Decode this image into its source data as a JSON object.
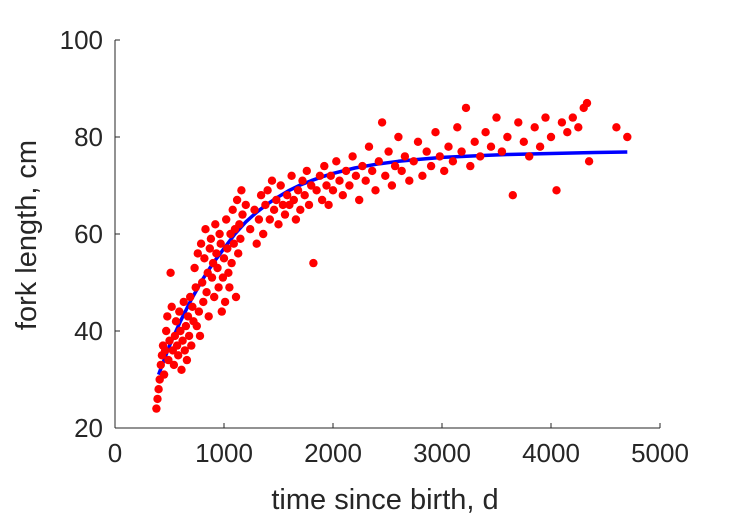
{
  "chart_data": {
    "type": "scatter",
    "title": "",
    "xlabel": "time since birth, d",
    "ylabel": "fork length, cm",
    "xlim": [
      0,
      5000
    ],
    "ylim": [
      20,
      100
    ],
    "xticks": [
      0,
      1000,
      2000,
      3000,
      4000,
      5000
    ],
    "yticks": [
      20,
      40,
      60,
      80,
      100
    ],
    "xtick_labels": [
      "0",
      "1000",
      "2000",
      "3000",
      "4000",
      "5000"
    ],
    "ytick_labels": [
      "20",
      "40",
      "60",
      "80",
      "100"
    ],
    "grid": false,
    "legend": "none",
    "series": [
      {
        "kind": "scatter",
        "color": "#ff0000",
        "points": [
          [
            380,
            24
          ],
          [
            390,
            26
          ],
          [
            400,
            28
          ],
          [
            410,
            30
          ],
          [
            420,
            33
          ],
          [
            430,
            35
          ],
          [
            440,
            37
          ],
          [
            450,
            31
          ],
          [
            460,
            36
          ],
          [
            470,
            40
          ],
          [
            480,
            43
          ],
          [
            490,
            34
          ],
          [
            500,
            38
          ],
          [
            510,
            52
          ],
          [
            520,
            45
          ],
          [
            530,
            36
          ],
          [
            540,
            33
          ],
          [
            550,
            39
          ],
          [
            560,
            42
          ],
          [
            570,
            37
          ],
          [
            580,
            35
          ],
          [
            590,
            44
          ],
          [
            600,
            40
          ],
          [
            610,
            32
          ],
          [
            620,
            38
          ],
          [
            630,
            46
          ],
          [
            640,
            36
          ],
          [
            650,
            41
          ],
          [
            660,
            34
          ],
          [
            670,
            43
          ],
          [
            680,
            39
          ],
          [
            690,
            47
          ],
          [
            700,
            37
          ],
          [
            710,
            45
          ],
          [
            720,
            42
          ],
          [
            730,
            53
          ],
          [
            740,
            49
          ],
          [
            750,
            41
          ],
          [
            760,
            56
          ],
          [
            770,
            44
          ],
          [
            780,
            39
          ],
          [
            790,
            58
          ],
          [
            800,
            50
          ],
          [
            810,
            46
          ],
          [
            820,
            55
          ],
          [
            830,
            61
          ],
          [
            840,
            48
          ],
          [
            850,
            52
          ],
          [
            860,
            43
          ],
          [
            870,
            57
          ],
          [
            880,
            59
          ],
          [
            890,
            51
          ],
          [
            900,
            54
          ],
          [
            910,
            47
          ],
          [
            920,
            62
          ],
          [
            930,
            56
          ],
          [
            940,
            53
          ],
          [
            950,
            49
          ],
          [
            960,
            60
          ],
          [
            970,
            58
          ],
          [
            980,
            44
          ],
          [
            990,
            51
          ],
          [
            1000,
            55
          ],
          [
            1010,
            46
          ],
          [
            1020,
            63
          ],
          [
            1030,
            57
          ],
          [
            1040,
            52
          ],
          [
            1050,
            49
          ],
          [
            1060,
            60
          ],
          [
            1070,
            54
          ],
          [
            1080,
            65
          ],
          [
            1090,
            58
          ],
          [
            1100,
            61
          ],
          [
            1110,
            47
          ],
          [
            1120,
            67
          ],
          [
            1130,
            56
          ],
          [
            1140,
            62
          ],
          [
            1150,
            59
          ],
          [
            1160,
            69
          ],
          [
            1170,
            64
          ],
          [
            1200,
            66
          ],
          [
            1240,
            61
          ],
          [
            1280,
            65
          ],
          [
            1300,
            58
          ],
          [
            1320,
            63
          ],
          [
            1340,
            68
          ],
          [
            1360,
            60
          ],
          [
            1380,
            66
          ],
          [
            1400,
            69
          ],
          [
            1420,
            63
          ],
          [
            1440,
            71
          ],
          [
            1460,
            65
          ],
          [
            1480,
            67
          ],
          [
            1500,
            62
          ],
          [
            1520,
            70
          ],
          [
            1540,
            66
          ],
          [
            1560,
            64
          ],
          [
            1580,
            68
          ],
          [
            1600,
            66
          ],
          [
            1620,
            72
          ],
          [
            1640,
            67
          ],
          [
            1660,
            63
          ],
          [
            1680,
            69
          ],
          [
            1700,
            65
          ],
          [
            1720,
            71
          ],
          [
            1740,
            68
          ],
          [
            1760,
            73
          ],
          [
            1780,
            66
          ],
          [
            1800,
            70
          ],
          [
            1820,
            54
          ],
          [
            1850,
            69
          ],
          [
            1880,
            72
          ],
          [
            1900,
            67
          ],
          [
            1920,
            74
          ],
          [
            1940,
            70
          ],
          [
            1960,
            66
          ],
          [
            1980,
            72
          ],
          [
            2000,
            69
          ],
          [
            2030,
            75
          ],
          [
            2060,
            71
          ],
          [
            2090,
            68
          ],
          [
            2120,
            73
          ],
          [
            2150,
            70
          ],
          [
            2180,
            76
          ],
          [
            2210,
            72
          ],
          [
            2240,
            67
          ],
          [
            2270,
            74
          ],
          [
            2300,
            71
          ],
          [
            2330,
            78
          ],
          [
            2360,
            73
          ],
          [
            2390,
            69
          ],
          [
            2420,
            75
          ],
          [
            2450,
            83
          ],
          [
            2480,
            72
          ],
          [
            2510,
            77
          ],
          [
            2540,
            70
          ],
          [
            2570,
            74
          ],
          [
            2600,
            80
          ],
          [
            2630,
            73
          ],
          [
            2660,
            76
          ],
          [
            2700,
            71
          ],
          [
            2740,
            75
          ],
          [
            2780,
            79
          ],
          [
            2820,
            72
          ],
          [
            2860,
            77
          ],
          [
            2900,
            74
          ],
          [
            2940,
            81
          ],
          [
            2980,
            76
          ],
          [
            3020,
            73
          ],
          [
            3060,
            78
          ],
          [
            3100,
            75
          ],
          [
            3140,
            82
          ],
          [
            3180,
            77
          ],
          [
            3220,
            86
          ],
          [
            3260,
            74
          ],
          [
            3300,
            79
          ],
          [
            3350,
            76
          ],
          [
            3400,
            81
          ],
          [
            3450,
            78
          ],
          [
            3500,
            84
          ],
          [
            3550,
            77
          ],
          [
            3600,
            80
          ],
          [
            3650,
            68
          ],
          [
            3700,
            83
          ],
          [
            3750,
            79
          ],
          [
            3800,
            76
          ],
          [
            3850,
            82
          ],
          [
            3900,
            78
          ],
          [
            3950,
            84
          ],
          [
            4000,
            80
          ],
          [
            4050,
            69
          ],
          [
            4100,
            83
          ],
          [
            4150,
            81
          ],
          [
            4200,
            84
          ],
          [
            4250,
            82
          ],
          [
            4300,
            86
          ],
          [
            4330,
            87
          ],
          [
            4350,
            75
          ],
          [
            4600,
            82
          ],
          [
            4700,
            80
          ]
        ]
      },
      {
        "kind": "line",
        "color": "#0000ff",
        "x": [
          400,
          500,
          600,
          700,
          800,
          900,
          1000,
          1100,
          1200,
          1300,
          1400,
          1500,
          1600,
          1700,
          1800,
          1900,
          2000,
          2200,
          2400,
          2600,
          2800,
          3000,
          3200,
          3400,
          3600,
          3800,
          4000,
          4200,
          4400,
          4700
        ],
        "y": [
          31,
          37,
          42,
          46.5,
          50.5,
          54,
          57,
          60,
          62.5,
          64.5,
          66.2,
          67.7,
          69,
          70.1,
          71,
          71.8,
          72.5,
          73.6,
          74.4,
          75,
          75.4,
          75.8,
          76,
          76.2,
          76.4,
          76.5,
          76.6,
          76.7,
          76.8,
          76.9
        ]
      }
    ]
  }
}
